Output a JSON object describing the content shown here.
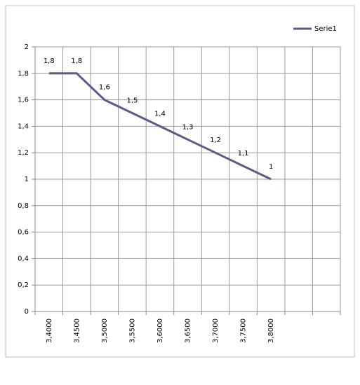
{
  "chart_data": {
    "type": "line",
    "categories": [
      "3,4000",
      "3,4500",
      "3,5000",
      "3,5500",
      "3,6000",
      "3,6500",
      "3,7000",
      "3,7500",
      "3,8000",
      null,
      null
    ],
    "series": [
      {
        "name": "Serie1",
        "color": "#5b5b86",
        "values": [
          1.8,
          1.8,
          1.6,
          1.5,
          1.4,
          1.3,
          1.2,
          1.1,
          1,
          null,
          null
        ],
        "value_labels": [
          "1,8",
          "1,8",
          "1,6",
          "1,5",
          "1,4",
          "1,3",
          "1,2",
          "1,1",
          "1",
          null,
          null
        ]
      }
    ],
    "ylim": [
      0,
      2
    ],
    "yticks": [
      0,
      {
        "value": 0.2,
        "label": "0,2"
      },
      {
        "value": 0.4,
        "label": "0,4"
      },
      {
        "value": 0.6,
        "label": "0,6"
      },
      {
        "value": 0.8,
        "label": "0,8"
      },
      1,
      {
        "value": 1.2,
        "label": "1,2"
      },
      {
        "value": 1.4,
        "label": "1,4"
      },
      {
        "value": 1.6,
        "label": "1,6"
      },
      {
        "value": 1.8,
        "label": "1,8"
      },
      2
    ],
    "grid": true,
    "legend": "top-right"
  }
}
